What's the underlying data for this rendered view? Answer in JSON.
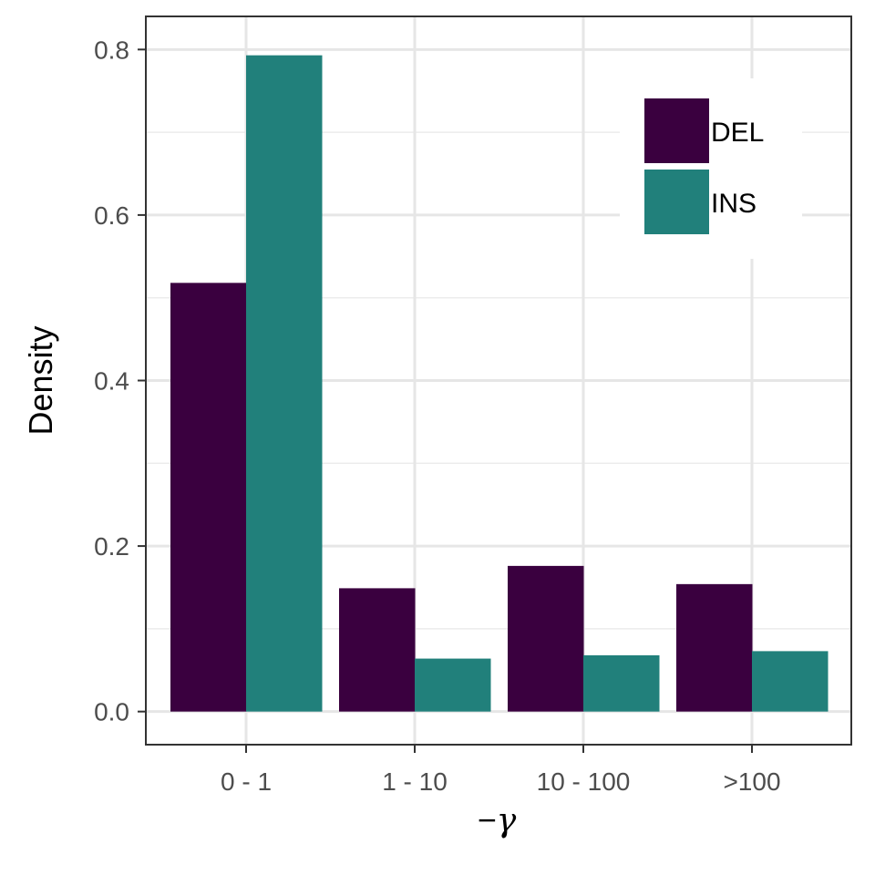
{
  "chart_data": {
    "type": "bar",
    "categories": [
      "0 - 1",
      "1 - 10",
      "10 - 100",
      ">100"
    ],
    "series": [
      {
        "name": "DEL",
        "color": "#3a003f",
        "values": [
          0.518,
          0.149,
          0.176,
          0.154
        ]
      },
      {
        "name": "INS",
        "color": "#21807b",
        "values": [
          0.793,
          0.064,
          0.068,
          0.073
        ]
      }
    ],
    "title": "",
    "xlabel_prefix": "−",
    "xlabel_symbol": "γ",
    "ylabel": "Density",
    "ylim": [
      -0.04,
      0.84
    ],
    "yticks": [
      0.0,
      0.2,
      0.4,
      0.6,
      0.8
    ],
    "ytick_labels": [
      "0.0",
      "0.2",
      "0.4",
      "0.6",
      "0.8"
    ],
    "grid": true,
    "legend_position": "top-right"
  }
}
